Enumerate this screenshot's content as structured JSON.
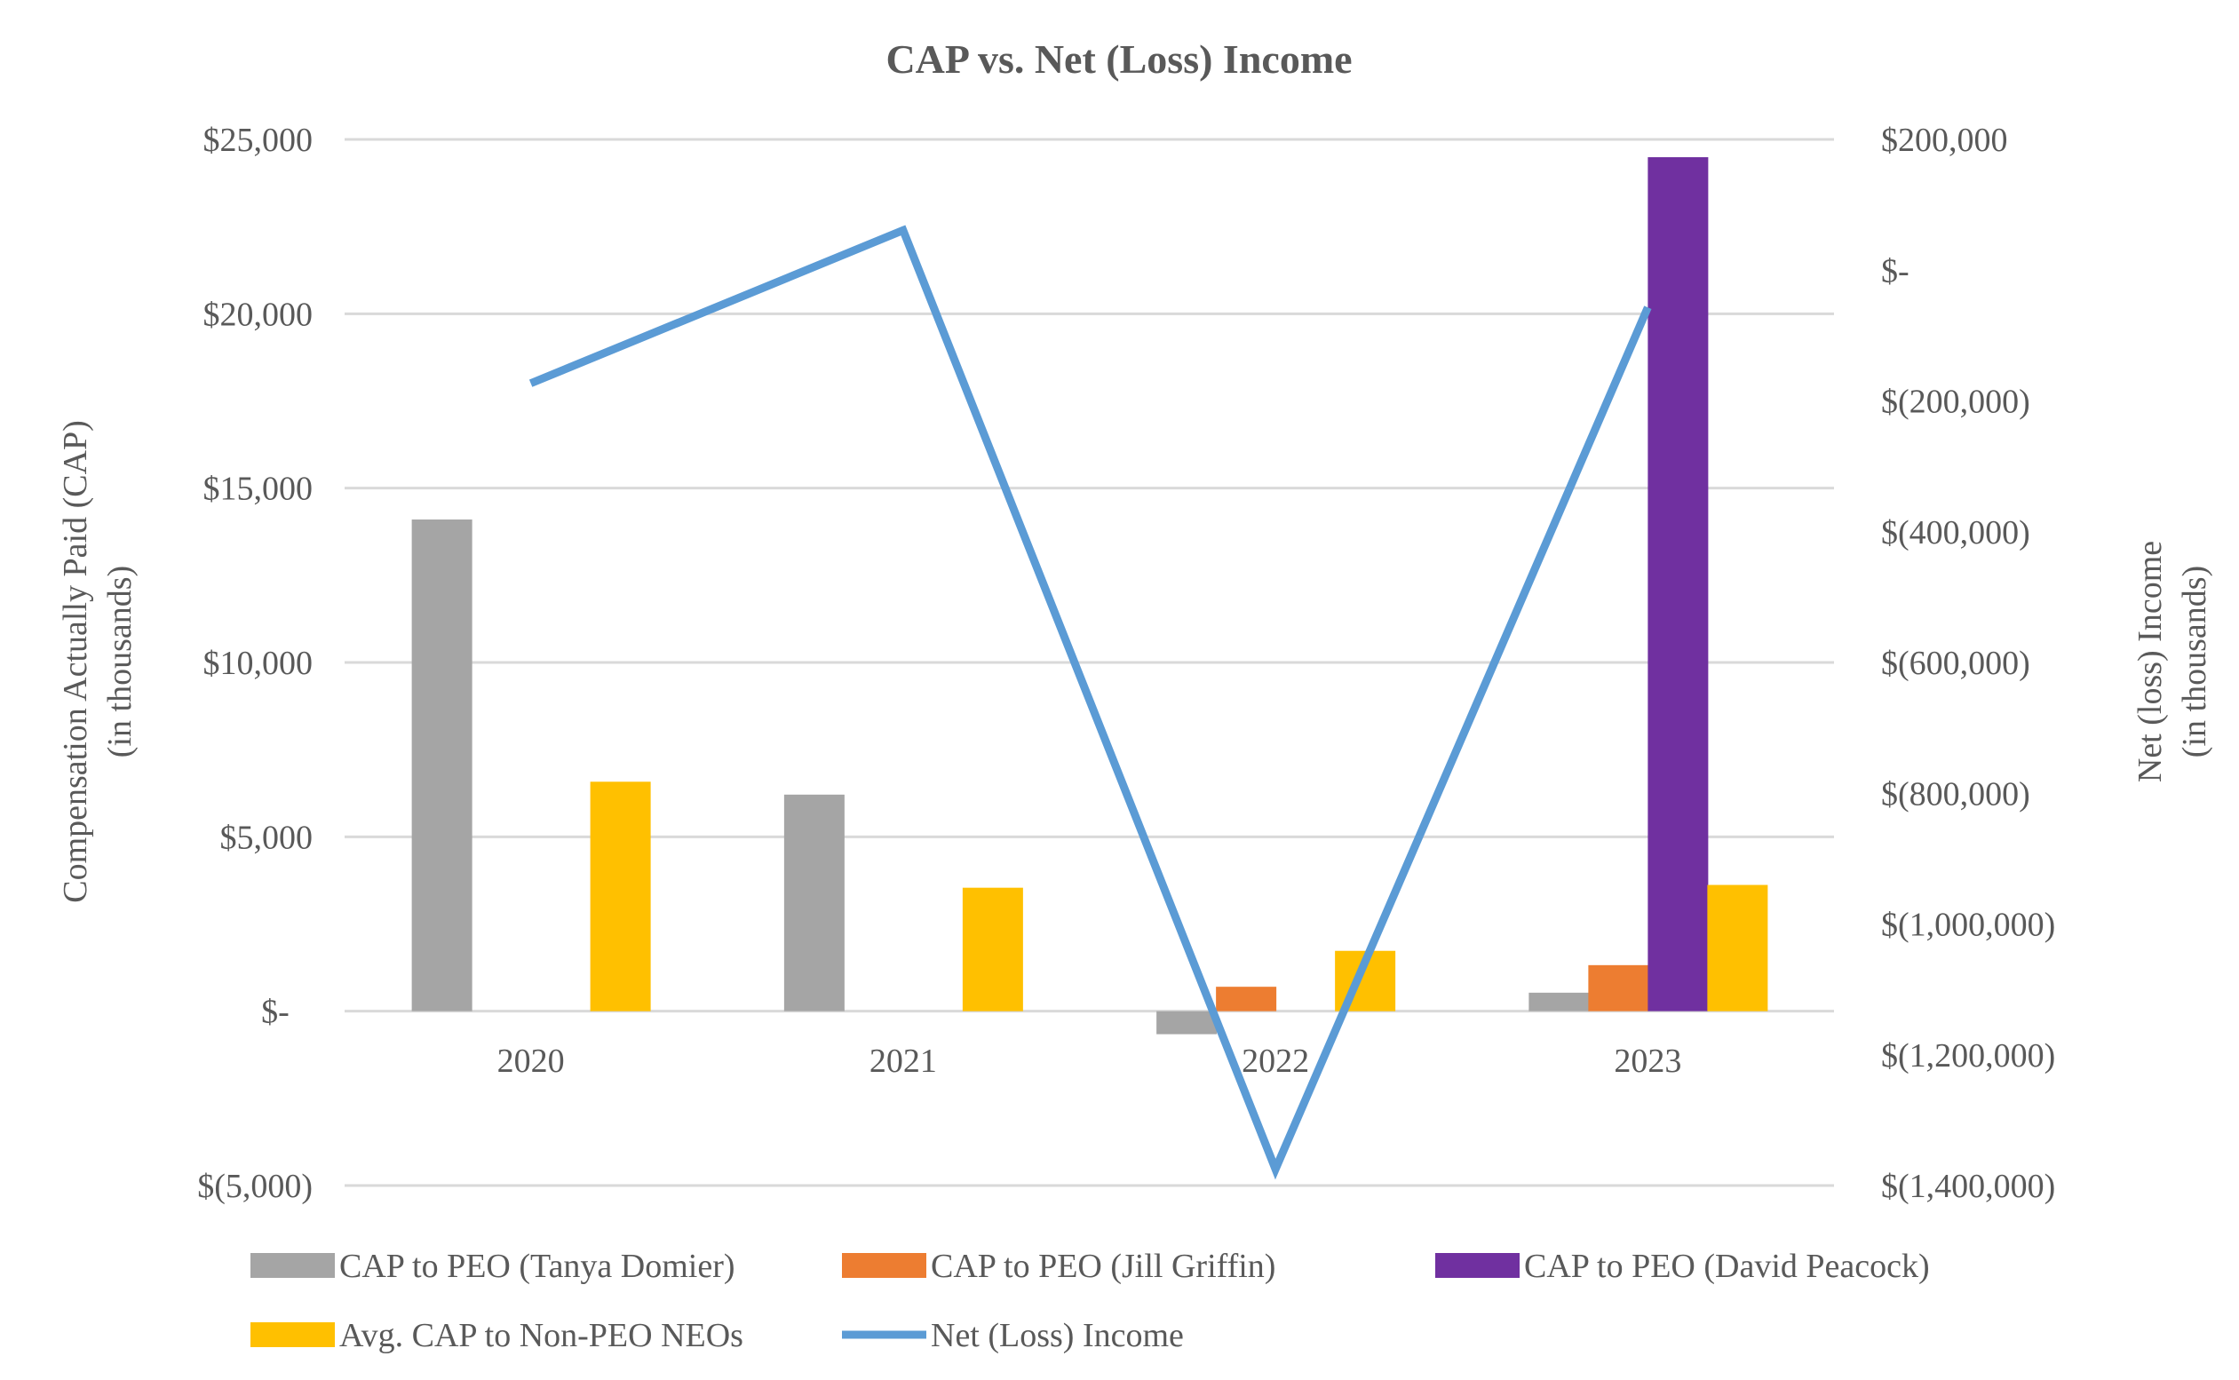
{
  "chart_data": {
    "type": "bar+line",
    "title": "CAP vs. Net (Loss) Income",
    "categories": [
      "2020",
      "2021",
      "2022",
      "2023"
    ],
    "ylabel_left": [
      "Compensation Actually Paid (CAP)",
      "(in thousands)"
    ],
    "ylabel_right": [
      "Net (loss) Income",
      "(in thousands)"
    ],
    "ylim_left": [
      -5000,
      25000
    ],
    "ylim_right": [
      -1400000,
      200000
    ],
    "left_ticks": [
      {
        "v": 25000,
        "label": "$25,000"
      },
      {
        "v": 20000,
        "label": "$20,000"
      },
      {
        "v": 15000,
        "label": "$15,000"
      },
      {
        "v": 10000,
        "label": "$10,000"
      },
      {
        "v": 5000,
        "label": "$5,000"
      },
      {
        "v": 0,
        "label": "$-"
      },
      {
        "v": -5000,
        "label": "$(5,000)"
      }
    ],
    "right_ticks": [
      {
        "v": 200000,
        "label": "$200,000"
      },
      {
        "v": 0,
        "label": "$-"
      },
      {
        "v": -200000,
        "label": "$(200,000)"
      },
      {
        "v": -400000,
        "label": "$(400,000)"
      },
      {
        "v": -600000,
        "label": "$(600,000)"
      },
      {
        "v": -800000,
        "label": "$(800,000)"
      },
      {
        "v": -1000000,
        "label": "$(1,000,000)"
      },
      {
        "v": -1200000,
        "label": "$(1,200,000)"
      },
      {
        "v": -1400000,
        "label": "$(1,400,000)"
      }
    ],
    "grid": true,
    "legend_position": "bottom",
    "series": [
      {
        "name": "CAP to PEO (Tanya Domier)",
        "type": "bar",
        "axis": "left",
        "color": "#A5A5A5",
        "values": [
          14100,
          6210,
          -660,
          530
        ]
      },
      {
        "name": "CAP to PEO (Jill Griffin)",
        "type": "bar",
        "axis": "left",
        "color": "#ED7D31",
        "values": [
          null,
          null,
          700,
          1320
        ]
      },
      {
        "name": "CAP to PEO (David Peacock)",
        "type": "bar",
        "axis": "left",
        "color": "#7030A0",
        "values": [
          null,
          null,
          null,
          24490
        ]
      },
      {
        "name": "Avg. CAP to Non-PEO NEOs",
        "type": "bar",
        "axis": "left",
        "color": "#FFC000",
        "values": [
          6580,
          3540,
          1730,
          3620
        ]
      },
      {
        "name": "Net (Loss) Income",
        "type": "line",
        "axis": "right",
        "color": "#5B9BD5",
        "values": [
          -173000,
          61000,
          -1375000,
          -57000
        ]
      }
    ]
  }
}
